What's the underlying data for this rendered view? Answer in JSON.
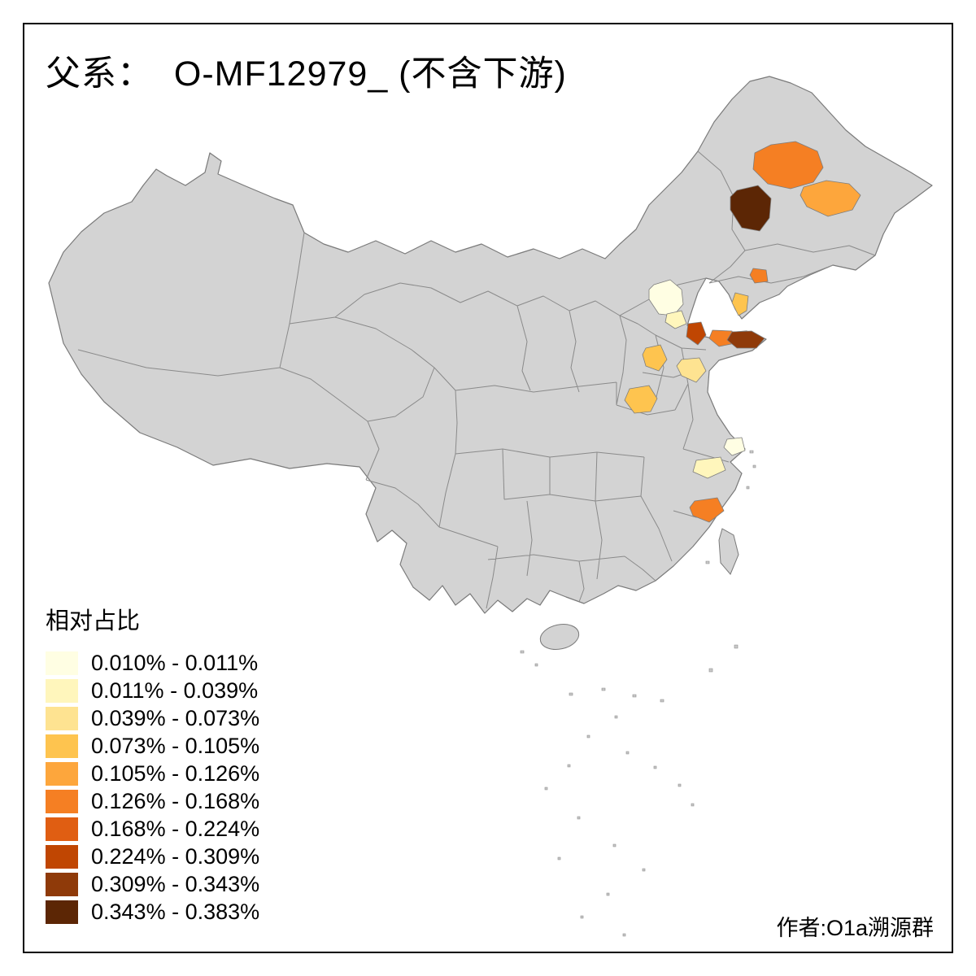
{
  "title": "父系：  O-MF12979_ (不含下游)",
  "attribution": "作者:O1a溯源群",
  "legend": {
    "title": "相对占比",
    "items": [
      {
        "label": "0.010% - 0.011%",
        "color": "#FFFEE3"
      },
      {
        "label": "0.011% - 0.039%",
        "color": "#FFF6BC"
      },
      {
        "label": "0.039% - 0.073%",
        "color": "#FEE391"
      },
      {
        "label": "0.073% - 0.105%",
        "color": "#FEC44F"
      },
      {
        "label": "0.105% - 0.126%",
        "color": "#FDA63C"
      },
      {
        "label": "0.126% - 0.168%",
        "color": "#F57F23"
      },
      {
        "label": "0.168% - 0.224%",
        "color": "#E05E12"
      },
      {
        "label": "0.224% - 0.309%",
        "color": "#C04602"
      },
      {
        "label": "0.309% - 0.343%",
        "color": "#8F3A09"
      },
      {
        "label": "0.343% - 0.383%",
        "color": "#5C2605"
      }
    ]
  },
  "map": {
    "base_fill": "#D3D3D3",
    "border_color": "#8A8A8A",
    "coast_color": "#7A7A7A",
    "background": "#FFFFFF",
    "highlights": [
      {
        "id": "region-1",
        "color": "#F57F23"
      },
      {
        "id": "region-2",
        "color": "#5C2605"
      },
      {
        "id": "region-3",
        "color": "#FDA63C"
      },
      {
        "id": "region-4",
        "color": "#F57F23"
      },
      {
        "id": "region-5",
        "color": "#FFFEE3"
      },
      {
        "id": "region-6",
        "color": "#FFF6BC"
      },
      {
        "id": "region-7",
        "color": "#FEC44F"
      },
      {
        "id": "region-8",
        "color": "#C04602"
      },
      {
        "id": "region-9",
        "color": "#F57F23"
      },
      {
        "id": "region-10",
        "color": "#8F3A09"
      },
      {
        "id": "region-11",
        "color": "#FEC44F"
      },
      {
        "id": "region-12",
        "color": "#FEE391"
      },
      {
        "id": "region-13",
        "color": "#FEC44F"
      },
      {
        "id": "region-14",
        "color": "#FFFEE3"
      },
      {
        "id": "region-15",
        "color": "#FFF6BC"
      },
      {
        "id": "region-16",
        "color": "#F57F23"
      }
    ]
  }
}
